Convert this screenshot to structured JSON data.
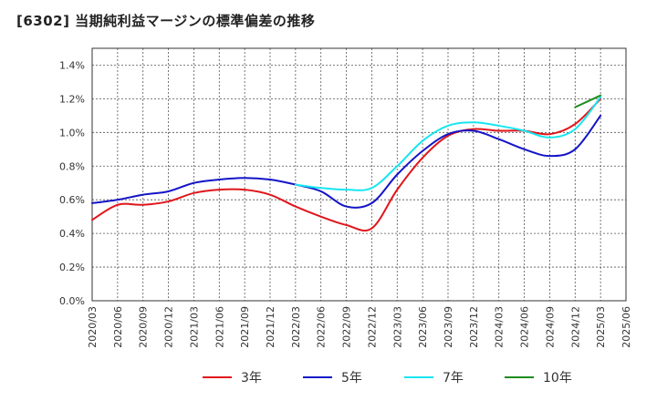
{
  "chart_data": {
    "type": "line",
    "title": "[6302]  当期純利益マージンの標準偏差の推移",
    "ylim": [
      0.0,
      1.5
    ],
    "yticks": [
      "0.0%",
      "0.2%",
      "0.4%",
      "0.6%",
      "0.8%",
      "1.0%",
      "1.2%",
      "1.4%"
    ],
    "ytick_values": [
      0.0,
      0.2,
      0.4,
      0.6,
      0.8,
      1.0,
      1.2,
      1.4
    ],
    "x_categories": [
      "2020/03",
      "2020/06",
      "2020/09",
      "2020/12",
      "2021/03",
      "2021/06",
      "2021/09",
      "2021/12",
      "2022/03",
      "2022/06",
      "2022/09",
      "2022/12",
      "2023/03",
      "2023/06",
      "2023/09",
      "2023/12",
      "2024/03",
      "2024/06",
      "2024/09",
      "2024/12",
      "2025/03",
      "2025/06"
    ],
    "grid": true,
    "legend_position": "bottom",
    "series": [
      {
        "name": "3年",
        "color": "#e0161b",
        "x": [
          "2020/03",
          "2020/06",
          "2020/09",
          "2020/12",
          "2021/03",
          "2021/06",
          "2021/09",
          "2021/12",
          "2022/03",
          "2022/06",
          "2022/09",
          "2022/12",
          "2023/03",
          "2023/06",
          "2023/09",
          "2023/12",
          "2024/03",
          "2024/06",
          "2024/09",
          "2024/12",
          "2025/03"
        ],
        "values": [
          0.48,
          0.57,
          0.57,
          0.59,
          0.64,
          0.66,
          0.66,
          0.63,
          0.56,
          0.5,
          0.45,
          0.43,
          0.66,
          0.85,
          0.98,
          1.02,
          1.01,
          1.01,
          0.99,
          1.05,
          1.2
        ]
      },
      {
        "name": "5年",
        "color": "#1414c8",
        "x": [
          "2020/03",
          "2020/06",
          "2020/09",
          "2020/12",
          "2021/03",
          "2021/06",
          "2021/09",
          "2021/12",
          "2022/03",
          "2022/06",
          "2022/09",
          "2022/12",
          "2023/03",
          "2023/06",
          "2023/09",
          "2023/12",
          "2024/03",
          "2024/06",
          "2024/09",
          "2024/12",
          "2025/03"
        ],
        "values": [
          0.58,
          0.6,
          0.63,
          0.65,
          0.7,
          0.72,
          0.73,
          0.72,
          0.69,
          0.65,
          0.56,
          0.58,
          0.75,
          0.89,
          0.99,
          1.01,
          0.96,
          0.9,
          0.86,
          0.9,
          1.1
        ]
      },
      {
        "name": "7年",
        "color": "#17e6f0",
        "x": [
          "2022/03",
          "2022/06",
          "2022/09",
          "2022/12",
          "2023/03",
          "2023/06",
          "2023/09",
          "2023/12",
          "2024/03",
          "2024/06",
          "2024/09",
          "2024/12",
          "2025/03"
        ],
        "values": [
          0.69,
          0.67,
          0.66,
          0.67,
          0.8,
          0.95,
          1.04,
          1.06,
          1.04,
          1.01,
          0.97,
          1.02,
          1.21
        ]
      },
      {
        "name": "10年",
        "color": "#1e8c1e",
        "x": [
          "2024/12",
          "2025/03"
        ],
        "values": [
          1.15,
          1.22
        ]
      }
    ]
  }
}
